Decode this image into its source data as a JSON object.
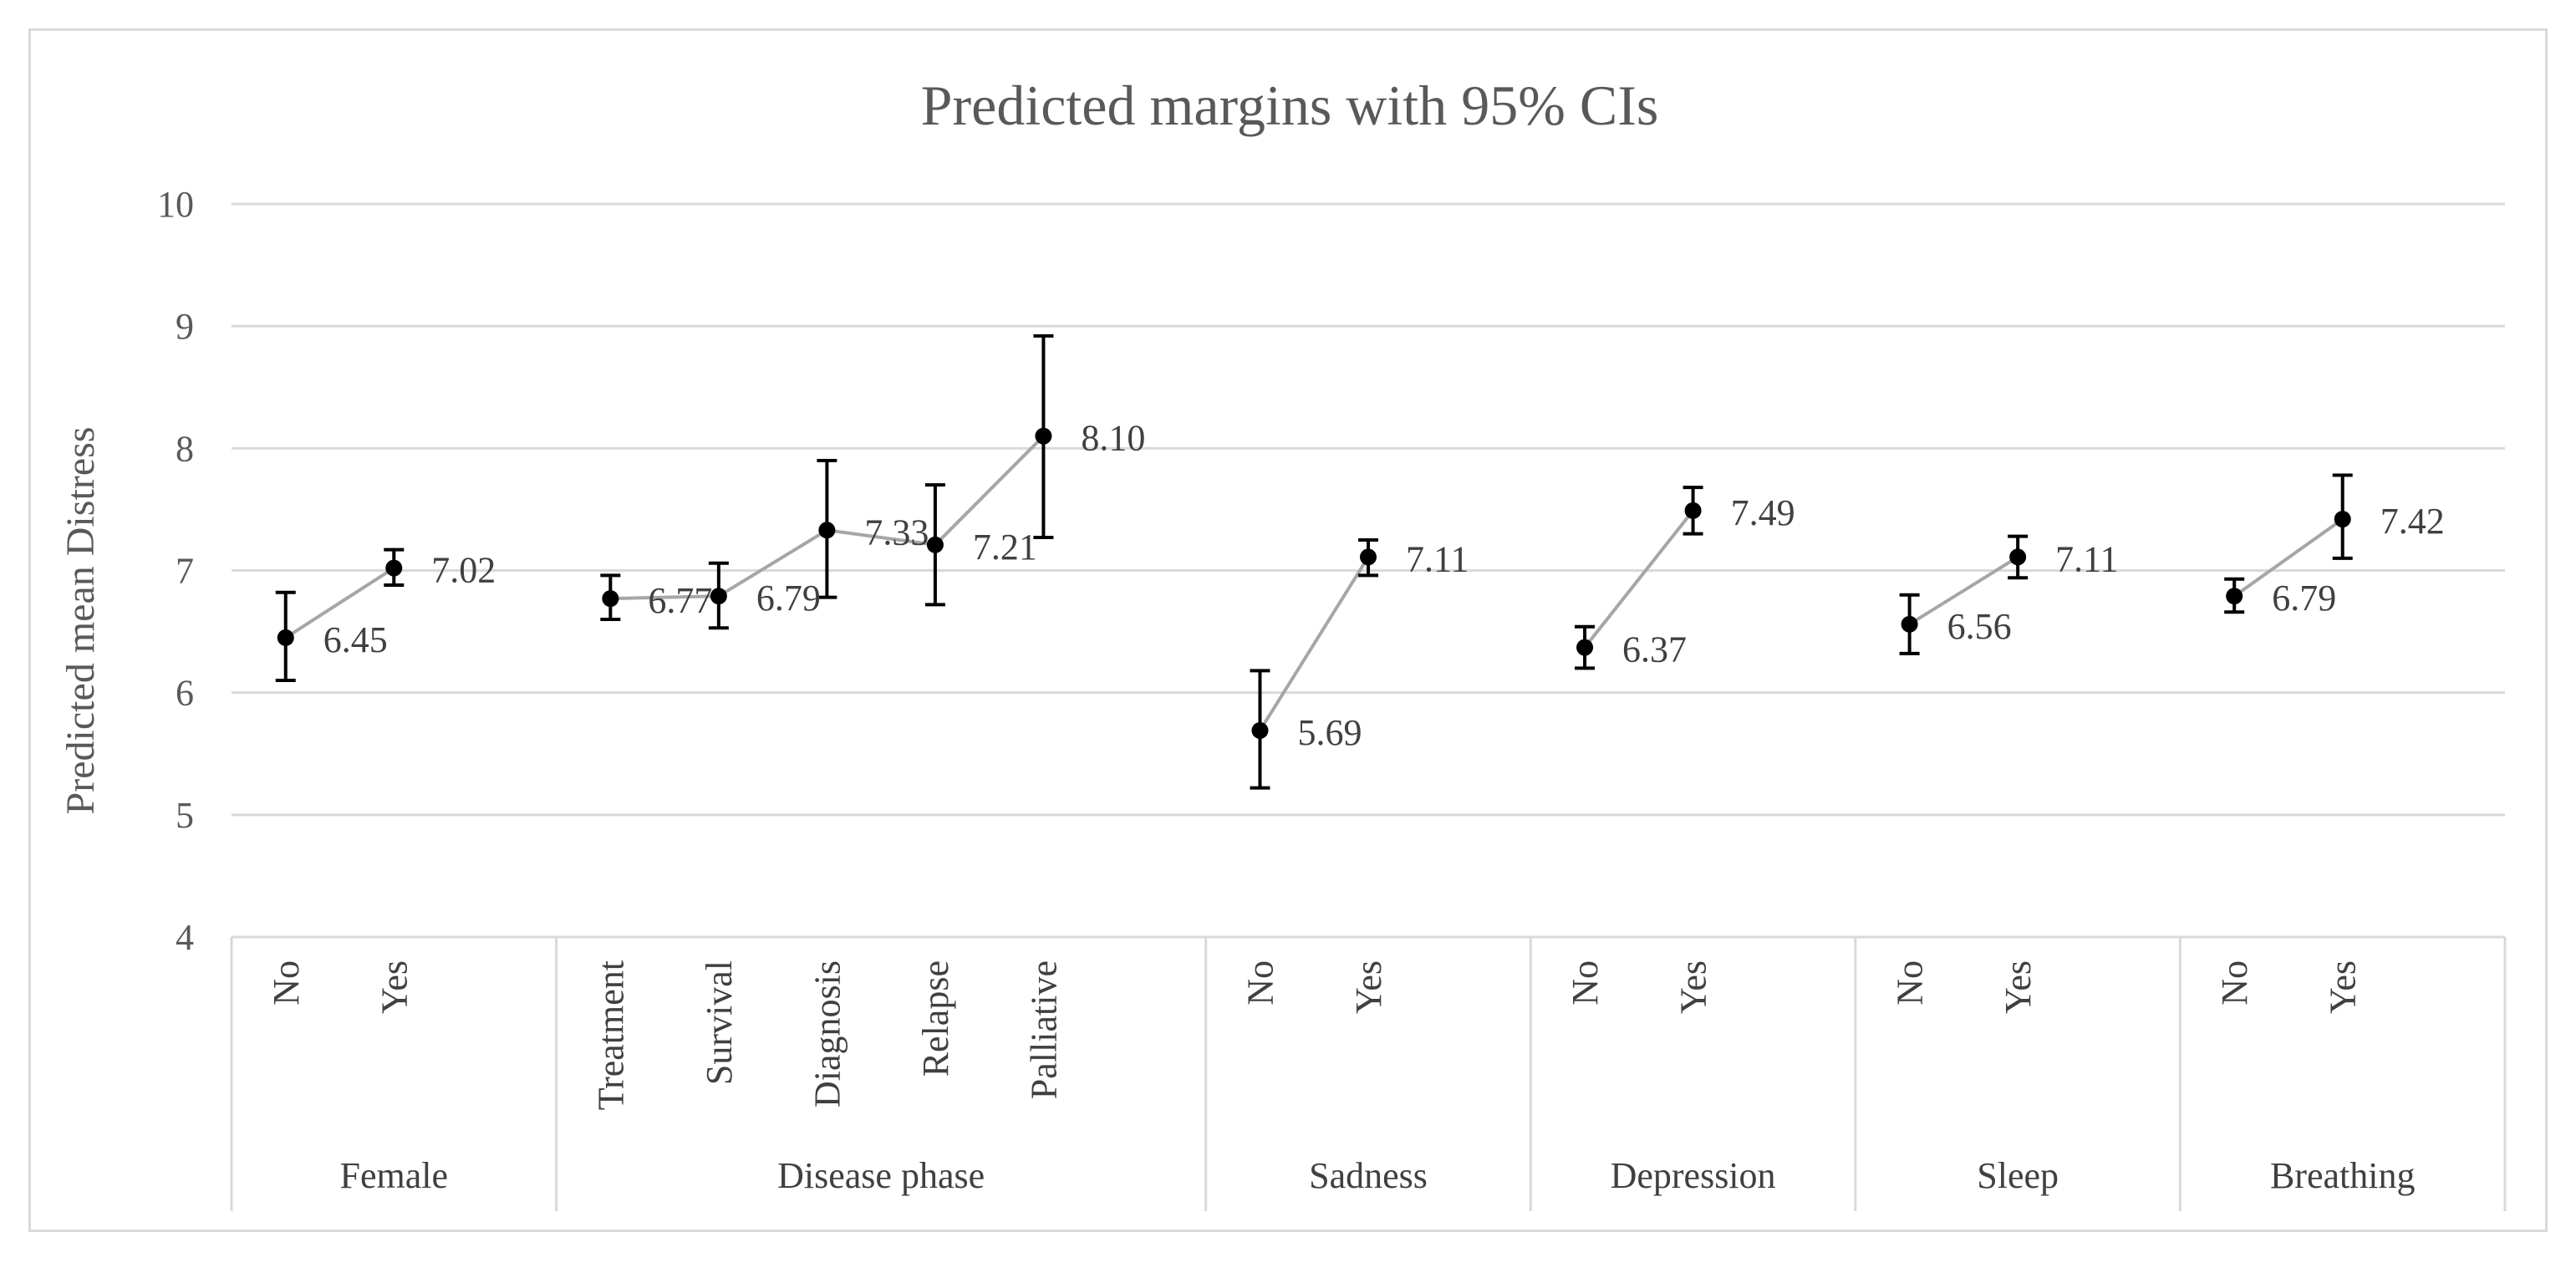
{
  "chart_data": {
    "type": "line",
    "title": "Predicted margins with 95% CIs",
    "ylabel": "Predicted mean Distress",
    "xlabel": "",
    "ylim": [
      4,
      10
    ],
    "yticks": [
      "4",
      "5",
      "6",
      "7",
      "8",
      "9",
      "10"
    ],
    "grid": true,
    "legend": "none",
    "colors": {
      "line": "#a6a6a6",
      "marker": "#000000",
      "grid": "#d9d9d9",
      "text": "#595959"
    },
    "groups": [
      {
        "name": "Female",
        "points": [
          {
            "category": "No",
            "value": 6.45,
            "label": "6.45",
            "ci": [
              6.1,
              6.82
            ]
          },
          {
            "category": "Yes",
            "value": 7.02,
            "label": "7.02",
            "ci": [
              6.88,
              7.17
            ]
          }
        ]
      },
      {
        "name": "Disease phase",
        "points": [
          {
            "category": "Treatment",
            "value": 6.77,
            "label": "6.77",
            "ci": [
              6.6,
              6.96
            ]
          },
          {
            "category": "Survival",
            "value": 6.79,
            "label": "6.79",
            "ci": [
              6.53,
              7.06
            ]
          },
          {
            "category": "Diagnosis",
            "value": 7.33,
            "label": "7.33",
            "ci": [
              6.78,
              7.9
            ]
          },
          {
            "category": "Relapse",
            "value": 7.21,
            "label": "7.21",
            "ci": [
              6.72,
              7.7
            ]
          },
          {
            "category": "Palliative",
            "value": 8.1,
            "label": "8.10",
            "ci": [
              7.27,
              8.92
            ]
          }
        ]
      },
      {
        "name": "Sadness",
        "points": [
          {
            "category": "No",
            "value": 5.69,
            "label": "5.69",
            "ci": [
              5.22,
              6.18
            ]
          },
          {
            "category": "Yes",
            "value": 7.11,
            "label": "7.11",
            "ci": [
              6.96,
              7.25
            ]
          }
        ]
      },
      {
        "name": "Depression",
        "points": [
          {
            "category": "No",
            "value": 6.37,
            "label": "6.37",
            "ci": [
              6.2,
              6.54
            ]
          },
          {
            "category": "Yes",
            "value": 7.49,
            "label": "7.49",
            "ci": [
              7.3,
              7.68
            ]
          }
        ]
      },
      {
        "name": "Sleep",
        "points": [
          {
            "category": "No",
            "value": 6.56,
            "label": "6.56",
            "ci": [
              6.32,
              6.8
            ]
          },
          {
            "category": "Yes",
            "value": 7.11,
            "label": "7.11",
            "ci": [
              6.94,
              7.28
            ]
          }
        ]
      },
      {
        "name": "Breathing",
        "points": [
          {
            "category": "No",
            "value": 6.79,
            "label": "6.79",
            "ci": [
              6.66,
              6.93
            ]
          },
          {
            "category": "Yes",
            "value": 7.42,
            "label": "7.42",
            "ci": [
              7.1,
              7.78
            ]
          }
        ]
      }
    ]
  }
}
